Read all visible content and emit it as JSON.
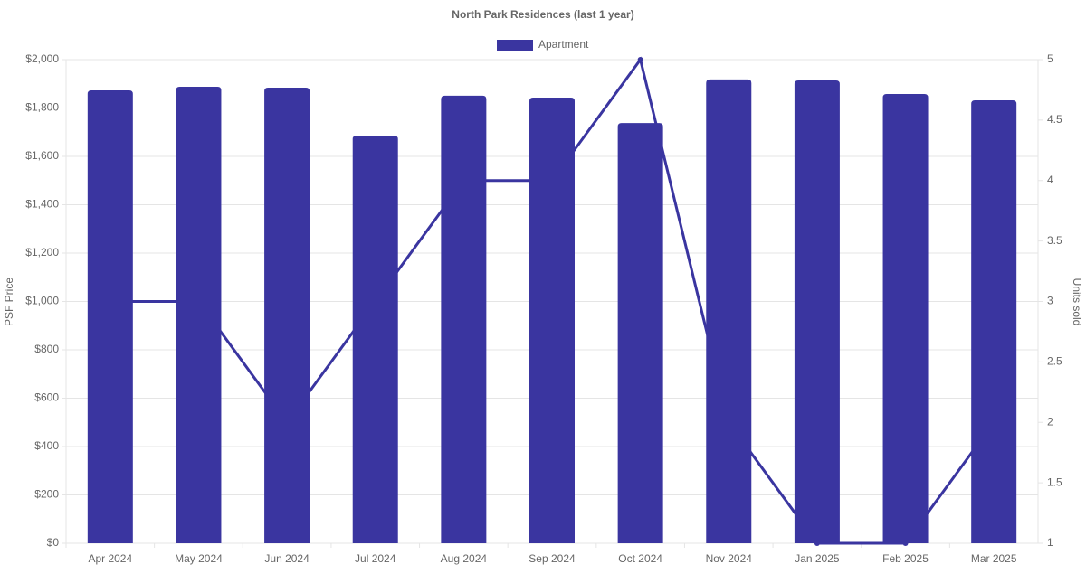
{
  "chart_data": {
    "type": "bar",
    "title": "North Park Residences (last 1 year)",
    "categories": [
      "Apr 2024",
      "May 2024",
      "Jun 2024",
      "Jul 2024",
      "Aug 2024",
      "Sep 2024",
      "Oct 2024",
      "Nov 2024",
      "Jan 2025",
      "Feb 2025",
      "Mar 2025"
    ],
    "series": [
      {
        "name": "Apartment",
        "color": "#3a35a0",
        "values": [
          1873,
          1888,
          1884,
          1686,
          1851,
          1843,
          1738,
          1918,
          1914,
          1858,
          1832
        ]
      },
      {
        "type": "line",
        "axis": "y2",
        "color": "#3a35a0",
        "values": [
          3,
          3,
          2,
          3,
          4,
          4,
          5,
          2,
          1,
          1,
          2
        ]
      }
    ],
    "ylabel": "PSF Price",
    "y2label": "Units sold",
    "ylim": [
      0,
      2000
    ],
    "yticks": [
      {
        "value": 0,
        "label": "$0"
      },
      {
        "value": 200,
        "label": "$200"
      },
      {
        "value": 400,
        "label": "$400"
      },
      {
        "value": 600,
        "label": "$600"
      },
      {
        "value": 800,
        "label": "$800"
      },
      {
        "value": 1000,
        "label": "$1,000"
      },
      {
        "value": 1200,
        "label": "$1,200"
      },
      {
        "value": 1400,
        "label": "$1,400"
      },
      {
        "value": 1600,
        "label": "$1,600"
      },
      {
        "value": 1800,
        "label": "$1,800"
      },
      {
        "value": 2000,
        "label": "$2,000"
      }
    ],
    "y2lim": [
      1,
      5
    ],
    "y2ticks": [
      1,
      1.5,
      2,
      2.5,
      3,
      3.5,
      4,
      4.5,
      5
    ],
    "grid": true,
    "legend": "top"
  }
}
